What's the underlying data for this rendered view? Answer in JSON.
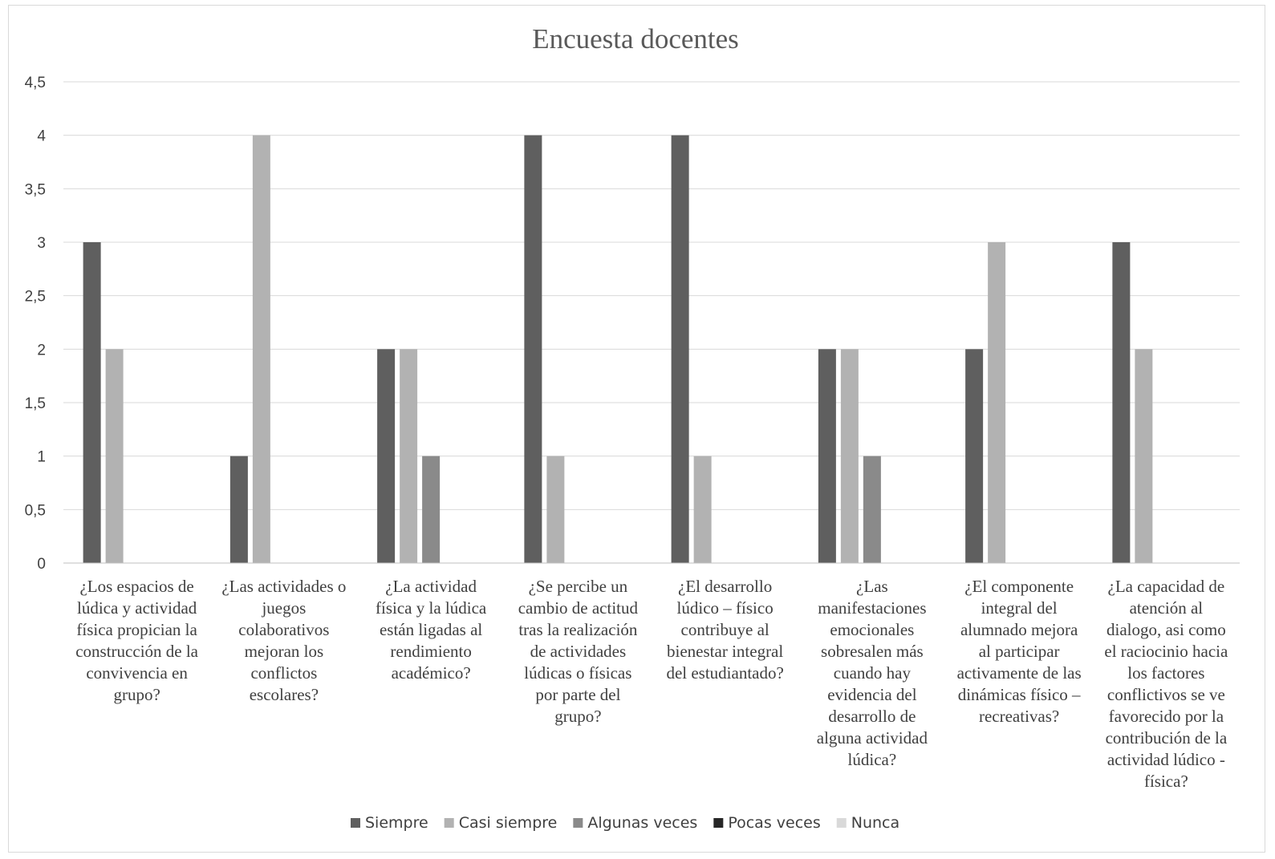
{
  "chart_data": {
    "type": "bar",
    "title": "Encuesta docentes",
    "xlabel": "",
    "ylabel": "",
    "ylim": [
      0,
      4.5
    ],
    "yticks": [
      "0",
      "0,5",
      "1",
      "1,5",
      "2",
      "2,5",
      "3",
      "3,5",
      "4",
      "4,5"
    ],
    "grid": true,
    "legend": "bottom",
    "categories": [
      [
        "¿Los espacios de",
        "lúdica y actividad",
        "física propician la",
        "construcción de la",
        "convivencia en",
        "grupo?"
      ],
      [
        "¿Las actividades o",
        "juegos",
        "colaborativos",
        "mejoran los",
        "conflictos",
        "escolares?"
      ],
      [
        "¿La actividad",
        "física y la lúdica",
        "están ligadas al",
        "rendimiento",
        "académico?"
      ],
      [
        "¿Se percibe un",
        "cambio de actitud",
        "tras la realización",
        "de actividades",
        "lúdicas o físicas",
        "por parte del",
        "grupo?"
      ],
      [
        "¿El desarrollo",
        "lúdico – físico",
        "contribuye al",
        "bienestar integral",
        "del estudiantado?"
      ],
      [
        "¿Las",
        "manifestaciones",
        "emocionales",
        "sobresalen más",
        "cuando hay",
        "evidencia del",
        "desarrollo de",
        "alguna actividad",
        "lúdica?"
      ],
      [
        "¿El componente",
        "integral del",
        "alumnado mejora",
        "al participar",
        "activamente de las",
        "dinámicas físico –",
        "recreativas?"
      ],
      [
        "¿La capacidad de",
        "atención al",
        "dialogo, asi como",
        "el raciocinio hacia",
        "los factores",
        "conflictivos se ve",
        "favorecido por la",
        "contribución de la",
        "actividad lúdico -",
        "física?"
      ]
    ],
    "series": [
      {
        "name": "Siempre",
        "color": "#5f5f5f",
        "values": [
          3,
          1,
          2,
          4,
          4,
          2,
          2,
          3
        ]
      },
      {
        "name": "Casi siempre",
        "color": "#b2b2b2",
        "values": [
          2,
          4,
          2,
          1,
          1,
          2,
          3,
          2
        ]
      },
      {
        "name": "Algunas veces",
        "color": "#8a8a8a",
        "values": [
          0,
          0,
          1,
          0,
          0,
          1,
          0,
          0
        ]
      },
      {
        "name": "Pocas veces",
        "color": "#262626",
        "values": [
          0,
          0,
          0,
          0,
          0,
          0,
          0,
          0
        ]
      },
      {
        "name": "Nunca",
        "color": "#d9d9d9",
        "values": [
          0,
          0,
          0,
          0,
          0,
          0,
          0,
          0
        ]
      }
    ]
  }
}
